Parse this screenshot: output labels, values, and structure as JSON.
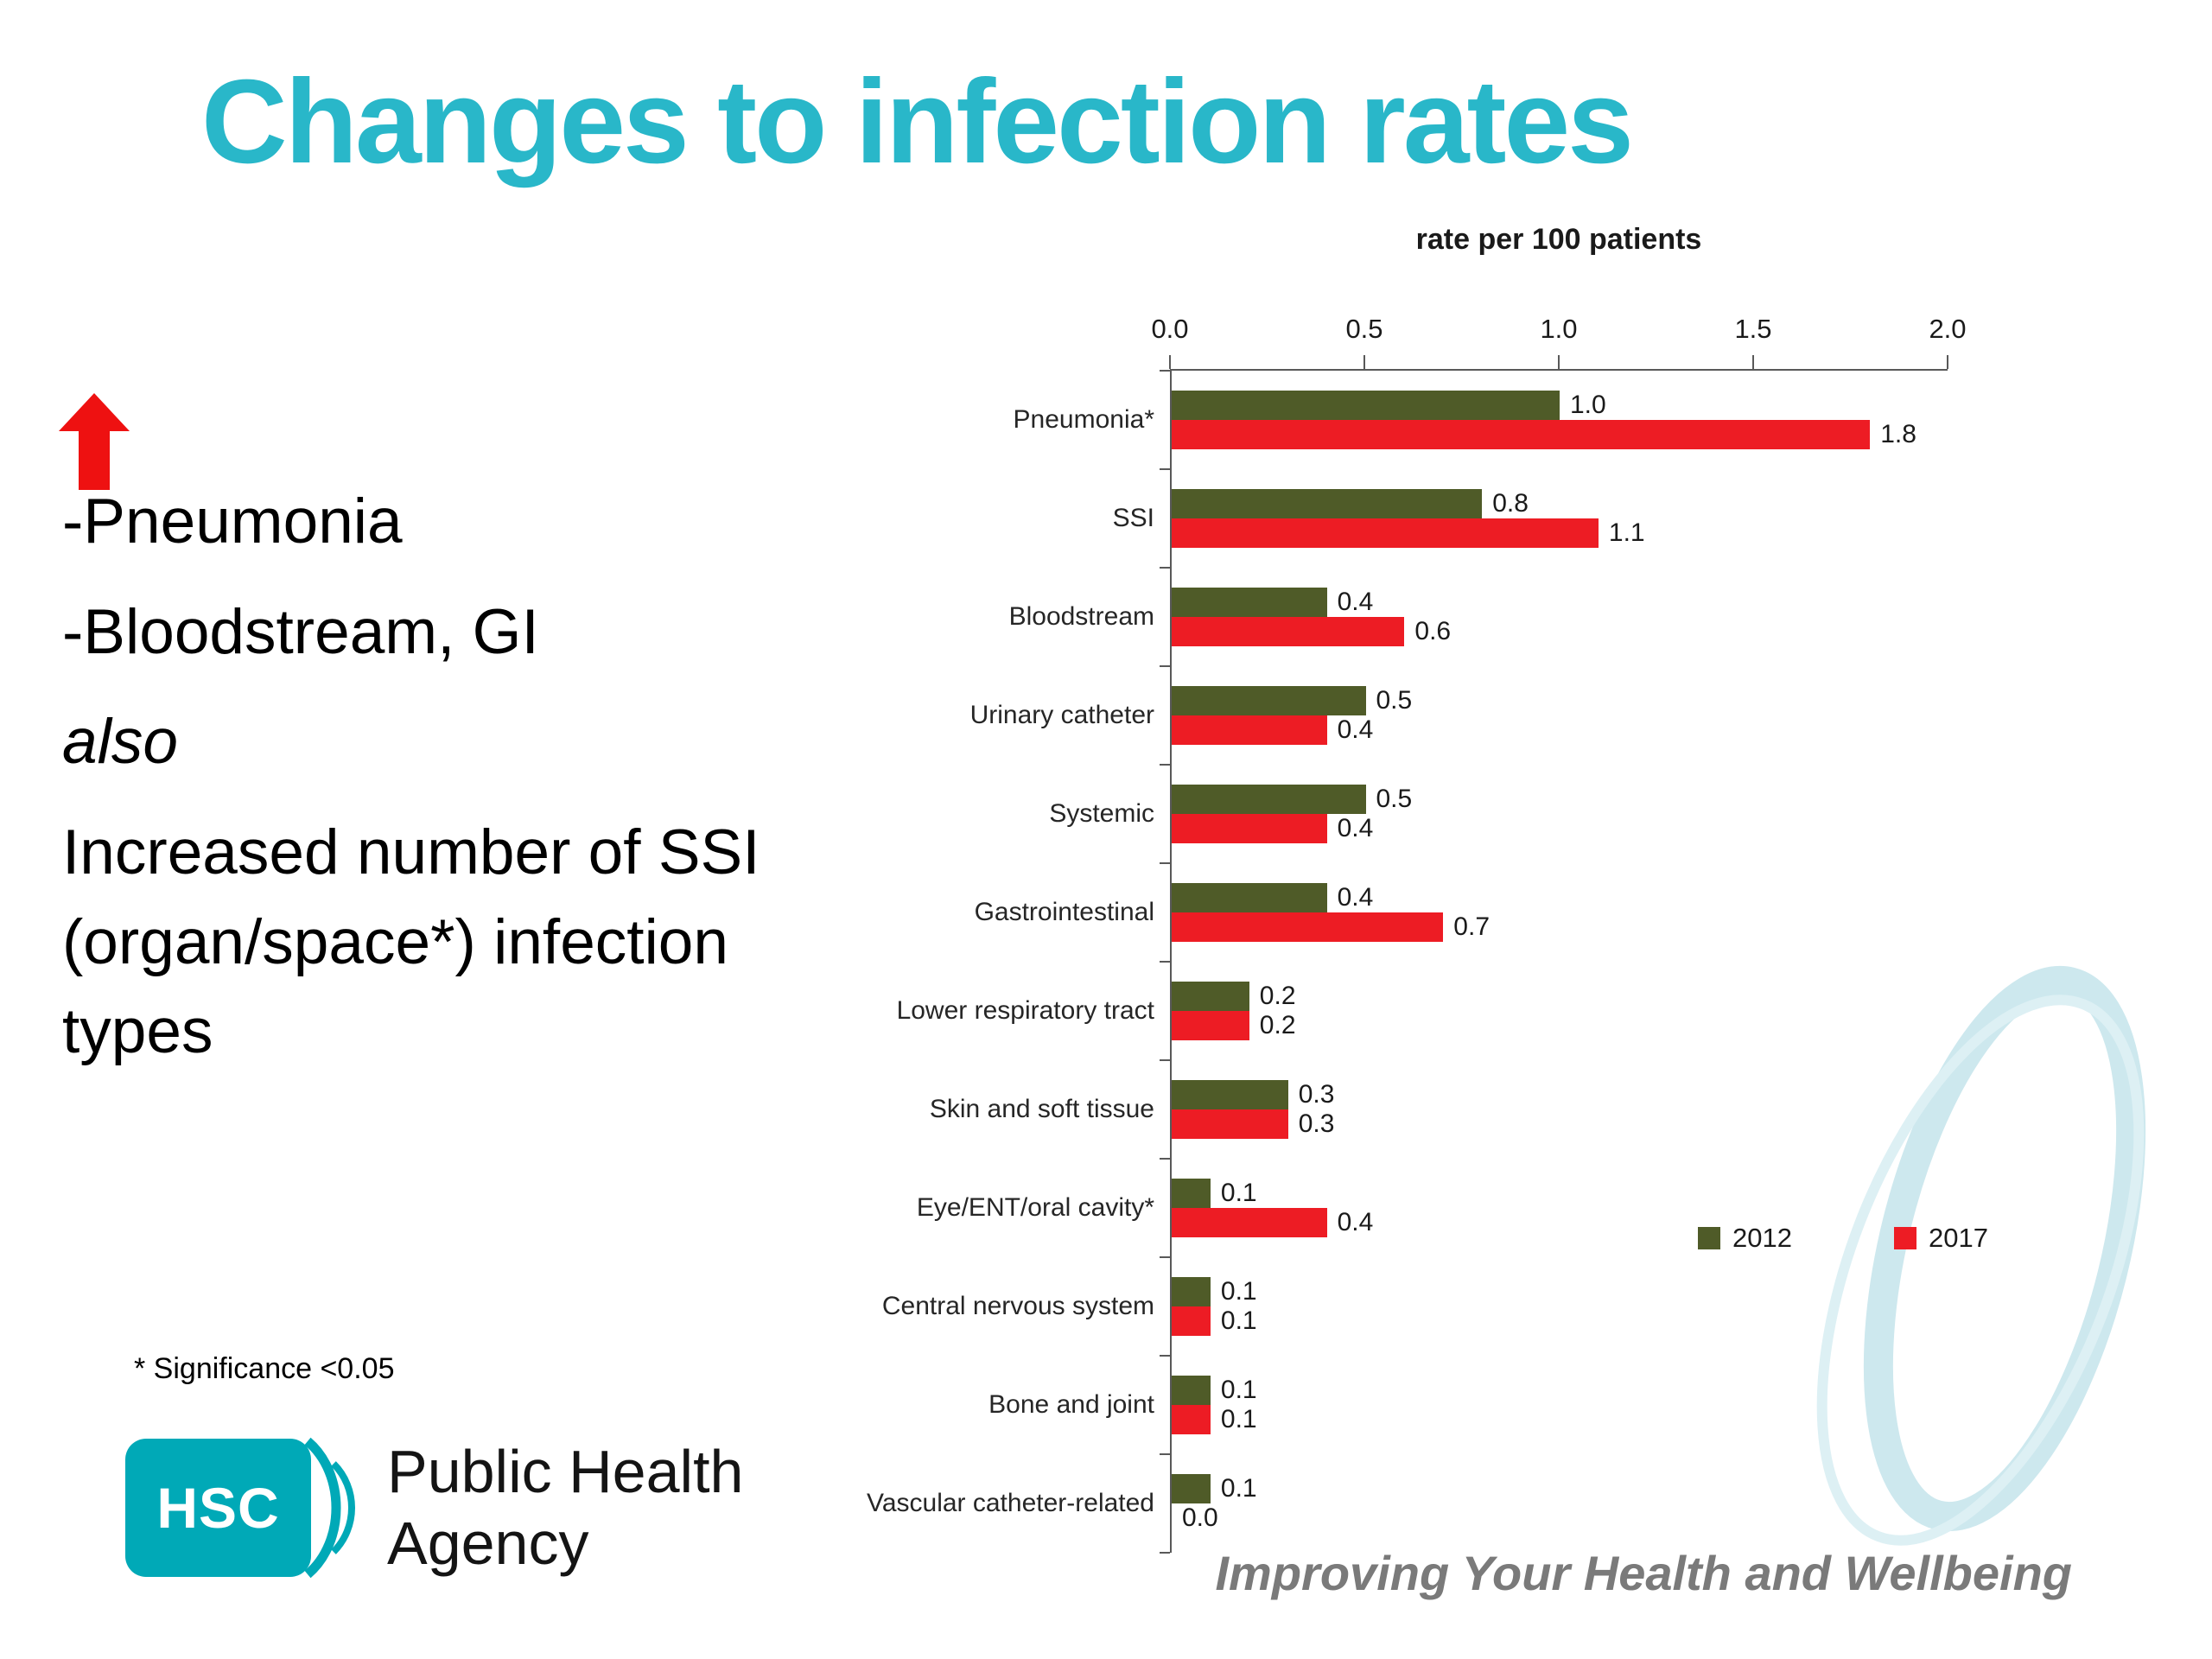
{
  "colors": {
    "accent_title": "#29b7c9",
    "series_2012": "#4f5b28",
    "series_2017": "#ed1c24",
    "arrow_red": "#ee1111",
    "logo_teal": "#00a9b7",
    "tagline_gray": "#7a7a7a",
    "axis_gray": "#595959"
  },
  "header": {
    "title": "Changes to infection rates"
  },
  "left_panel": {
    "bullet1": "-Pneumonia",
    "bullet2": "-Bloodstream, GI",
    "also": "also",
    "paragraph": "Increased number of SSI (organ/space*) infection types",
    "footnote": "* Significance <0.05"
  },
  "logo": {
    "abbr": "HSC",
    "line1": "Public Health",
    "line2": "Agency"
  },
  "footer": {
    "tagline": "Improving Your Health and Wellbeing"
  },
  "chart_data": {
    "type": "bar",
    "orientation": "horizontal",
    "title": "rate per 100 patients",
    "categories": [
      "Pneumonia*",
      "SSI",
      "Bloodstream",
      "Urinary catheter",
      "Systemic",
      "Gastrointestinal",
      "Lower respiratory tract",
      "Skin and soft tissue",
      "Eye/ENT/oral cavity*",
      "Central nervous system",
      "Bone and joint",
      "Vascular catheter-related"
    ],
    "series": [
      {
        "name": "2012",
        "color": "#4f5b28",
        "values": [
          1.0,
          0.8,
          0.4,
          0.5,
          0.5,
          0.4,
          0.2,
          0.3,
          0.1,
          0.1,
          0.1,
          0.1
        ]
      },
      {
        "name": "2017",
        "color": "#ed1c24",
        "values": [
          1.8,
          1.1,
          0.6,
          0.4,
          0.4,
          0.7,
          0.2,
          0.3,
          0.4,
          0.1,
          0.1,
          0.0
        ]
      }
    ],
    "xlim": [
      0.0,
      2.0
    ],
    "x_ticks": [
      0.0,
      0.5,
      1.0,
      1.5,
      2.0
    ],
    "grid": false,
    "legend_position": "right-middle",
    "value_label_decimals": 1
  }
}
